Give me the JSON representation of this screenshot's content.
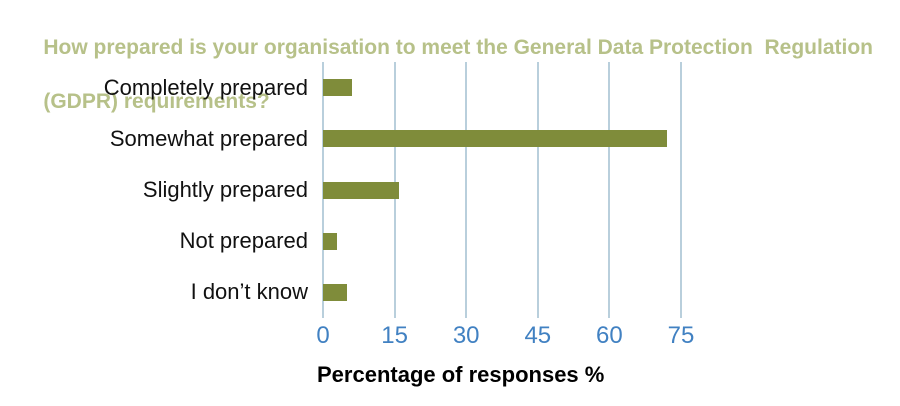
{
  "title": {
    "line1": "How prepared is your organisation to meet the General Data Protection  Regulation",
    "line2": "(GDPR) requirements?",
    "color": "#b7c189"
  },
  "chart_data": {
    "type": "bar",
    "orientation": "horizontal",
    "title": "How prepared is your organisation to meet the General Data Protection Regulation (GDPR) requirements?",
    "categories": [
      "Completely prepared",
      "Somewhat prepared",
      "Slightly prepared",
      "Not prepared",
      "I don’t know"
    ],
    "values": [
      6,
      72,
      16,
      3,
      5
    ],
    "unit": "%",
    "xlabel": "Percentage of responses %",
    "xlim": [
      0,
      75
    ],
    "xticks": [
      0,
      15,
      30,
      45,
      60,
      75
    ],
    "grid": true,
    "legend": "none",
    "colors": {
      "bar": "#7f8c3a",
      "gridline": "#b9cfdc",
      "tick_label": "#4181c2",
      "category_label": "#111111",
      "background": "#ffffff"
    }
  }
}
